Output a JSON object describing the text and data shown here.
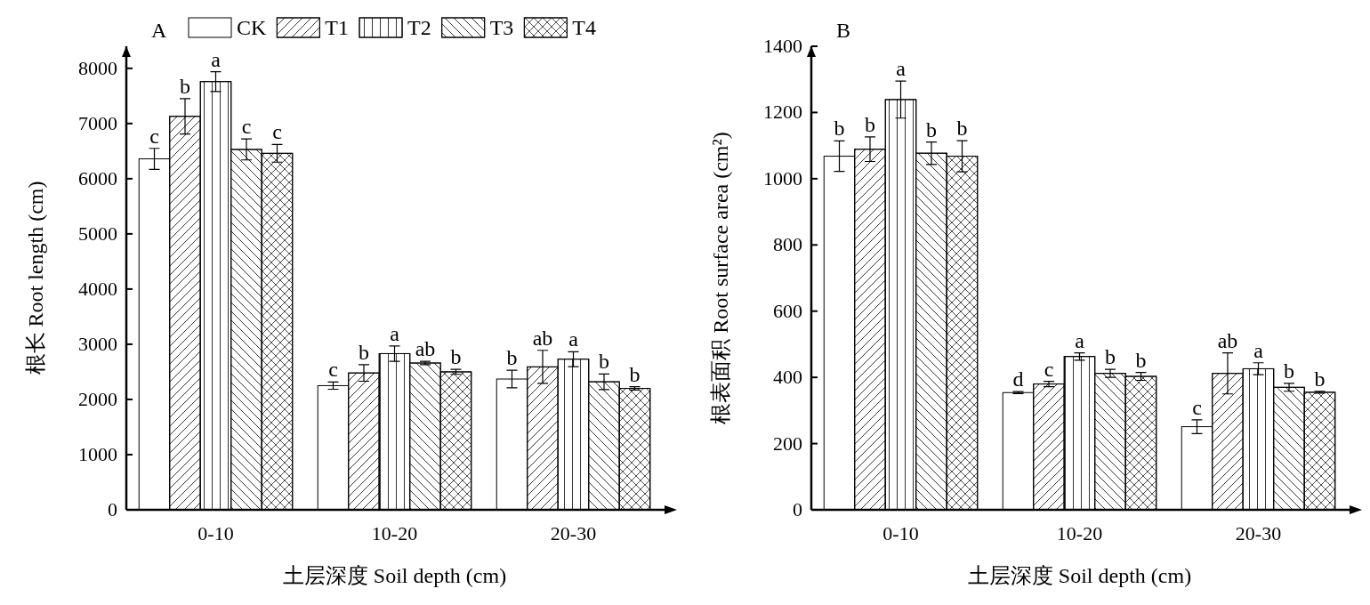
{
  "chart_data": [
    {
      "type": "bar",
      "title": "A",
      "xlabel": "土层深度 Soil depth (cm)",
      "ylabel": "根长 Root length (cm)",
      "categories": [
        "0-10",
        "10-20",
        "20-30"
      ],
      "ylim": [
        0,
        8400
      ],
      "yticks": [
        0,
        1000,
        2000,
        3000,
        4000,
        5000,
        6000,
        7000,
        8000
      ],
      "legend": "top",
      "series": [
        {
          "name": "CK",
          "color": "#ffffff",
          "values": [
            6360,
            2250,
            2370
          ],
          "errors": [
            190,
            65,
            160
          ],
          "value_labels": [
            "c",
            "c",
            "b"
          ]
        },
        {
          "name": "T1",
          "color": "#ffffff",
          "values": [
            7130,
            2480,
            2590
          ],
          "errors": [
            320,
            150,
            300
          ],
          "value_labels": [
            "b",
            "b",
            "ab"
          ]
        },
        {
          "name": "T2",
          "color": "#ffffff",
          "values": [
            7760,
            2830,
            2730
          ],
          "errors": [
            180,
            140,
            135
          ],
          "value_labels": [
            "a",
            "a",
            "a"
          ]
        },
        {
          "name": "T3",
          "color": "#ffffff",
          "values": [
            6530,
            2660,
            2320
          ],
          "errors": [
            190,
            30,
            140
          ],
          "value_labels": [
            "c",
            "ab",
            "b"
          ]
        },
        {
          "name": "T4",
          "color": "#ffffff",
          "values": [
            6460,
            2500,
            2200
          ],
          "errors": [
            160,
            45,
            30
          ],
          "value_labels": [
            "c",
            "b",
            "b"
          ]
        }
      ]
    },
    {
      "type": "bar",
      "title": "B",
      "xlabel": "土层深度 Soil depth (cm)",
      "ylabel": "根表面积 Root surface area (cm²)",
      "categories": [
        "0-10",
        "10-20",
        "20-30"
      ],
      "ylim": [
        0,
        1400
      ],
      "yticks": [
        0,
        200,
        400,
        600,
        800,
        1000,
        1200,
        1400
      ],
      "series": [
        {
          "color": "#ffffff",
          "values": [
            1068,
            354,
            251
          ],
          "errors": [
            46,
            3,
            21
          ],
          "value_labels": [
            "b",
            "d",
            "c"
          ]
        },
        {
          "color": "#ffffff",
          "values": [
            1089,
            380,
            412
          ],
          "errors": [
            37,
            8,
            62
          ],
          "value_labels": [
            "b",
            "c",
            "ab"
          ]
        },
        {
          "color": "#ffffff",
          "values": [
            1239,
            463,
            426
          ],
          "errors": [
            56,
            11,
            18
          ],
          "value_labels": [
            "a",
            "a",
            "a"
          ]
        },
        {
          "color": "#ffffff",
          "values": [
            1077,
            412,
            370
          ],
          "errors": [
            34,
            12,
            12
          ],
          "value_labels": [
            "b",
            "b",
            "b"
          ]
        },
        {
          "color": "#ffffff",
          "values": [
            1068,
            403,
            355
          ],
          "errors": [
            47,
            12,
            3
          ],
          "value_labels": [
            "b",
            "b",
            "b"
          ]
        }
      ]
    }
  ]
}
